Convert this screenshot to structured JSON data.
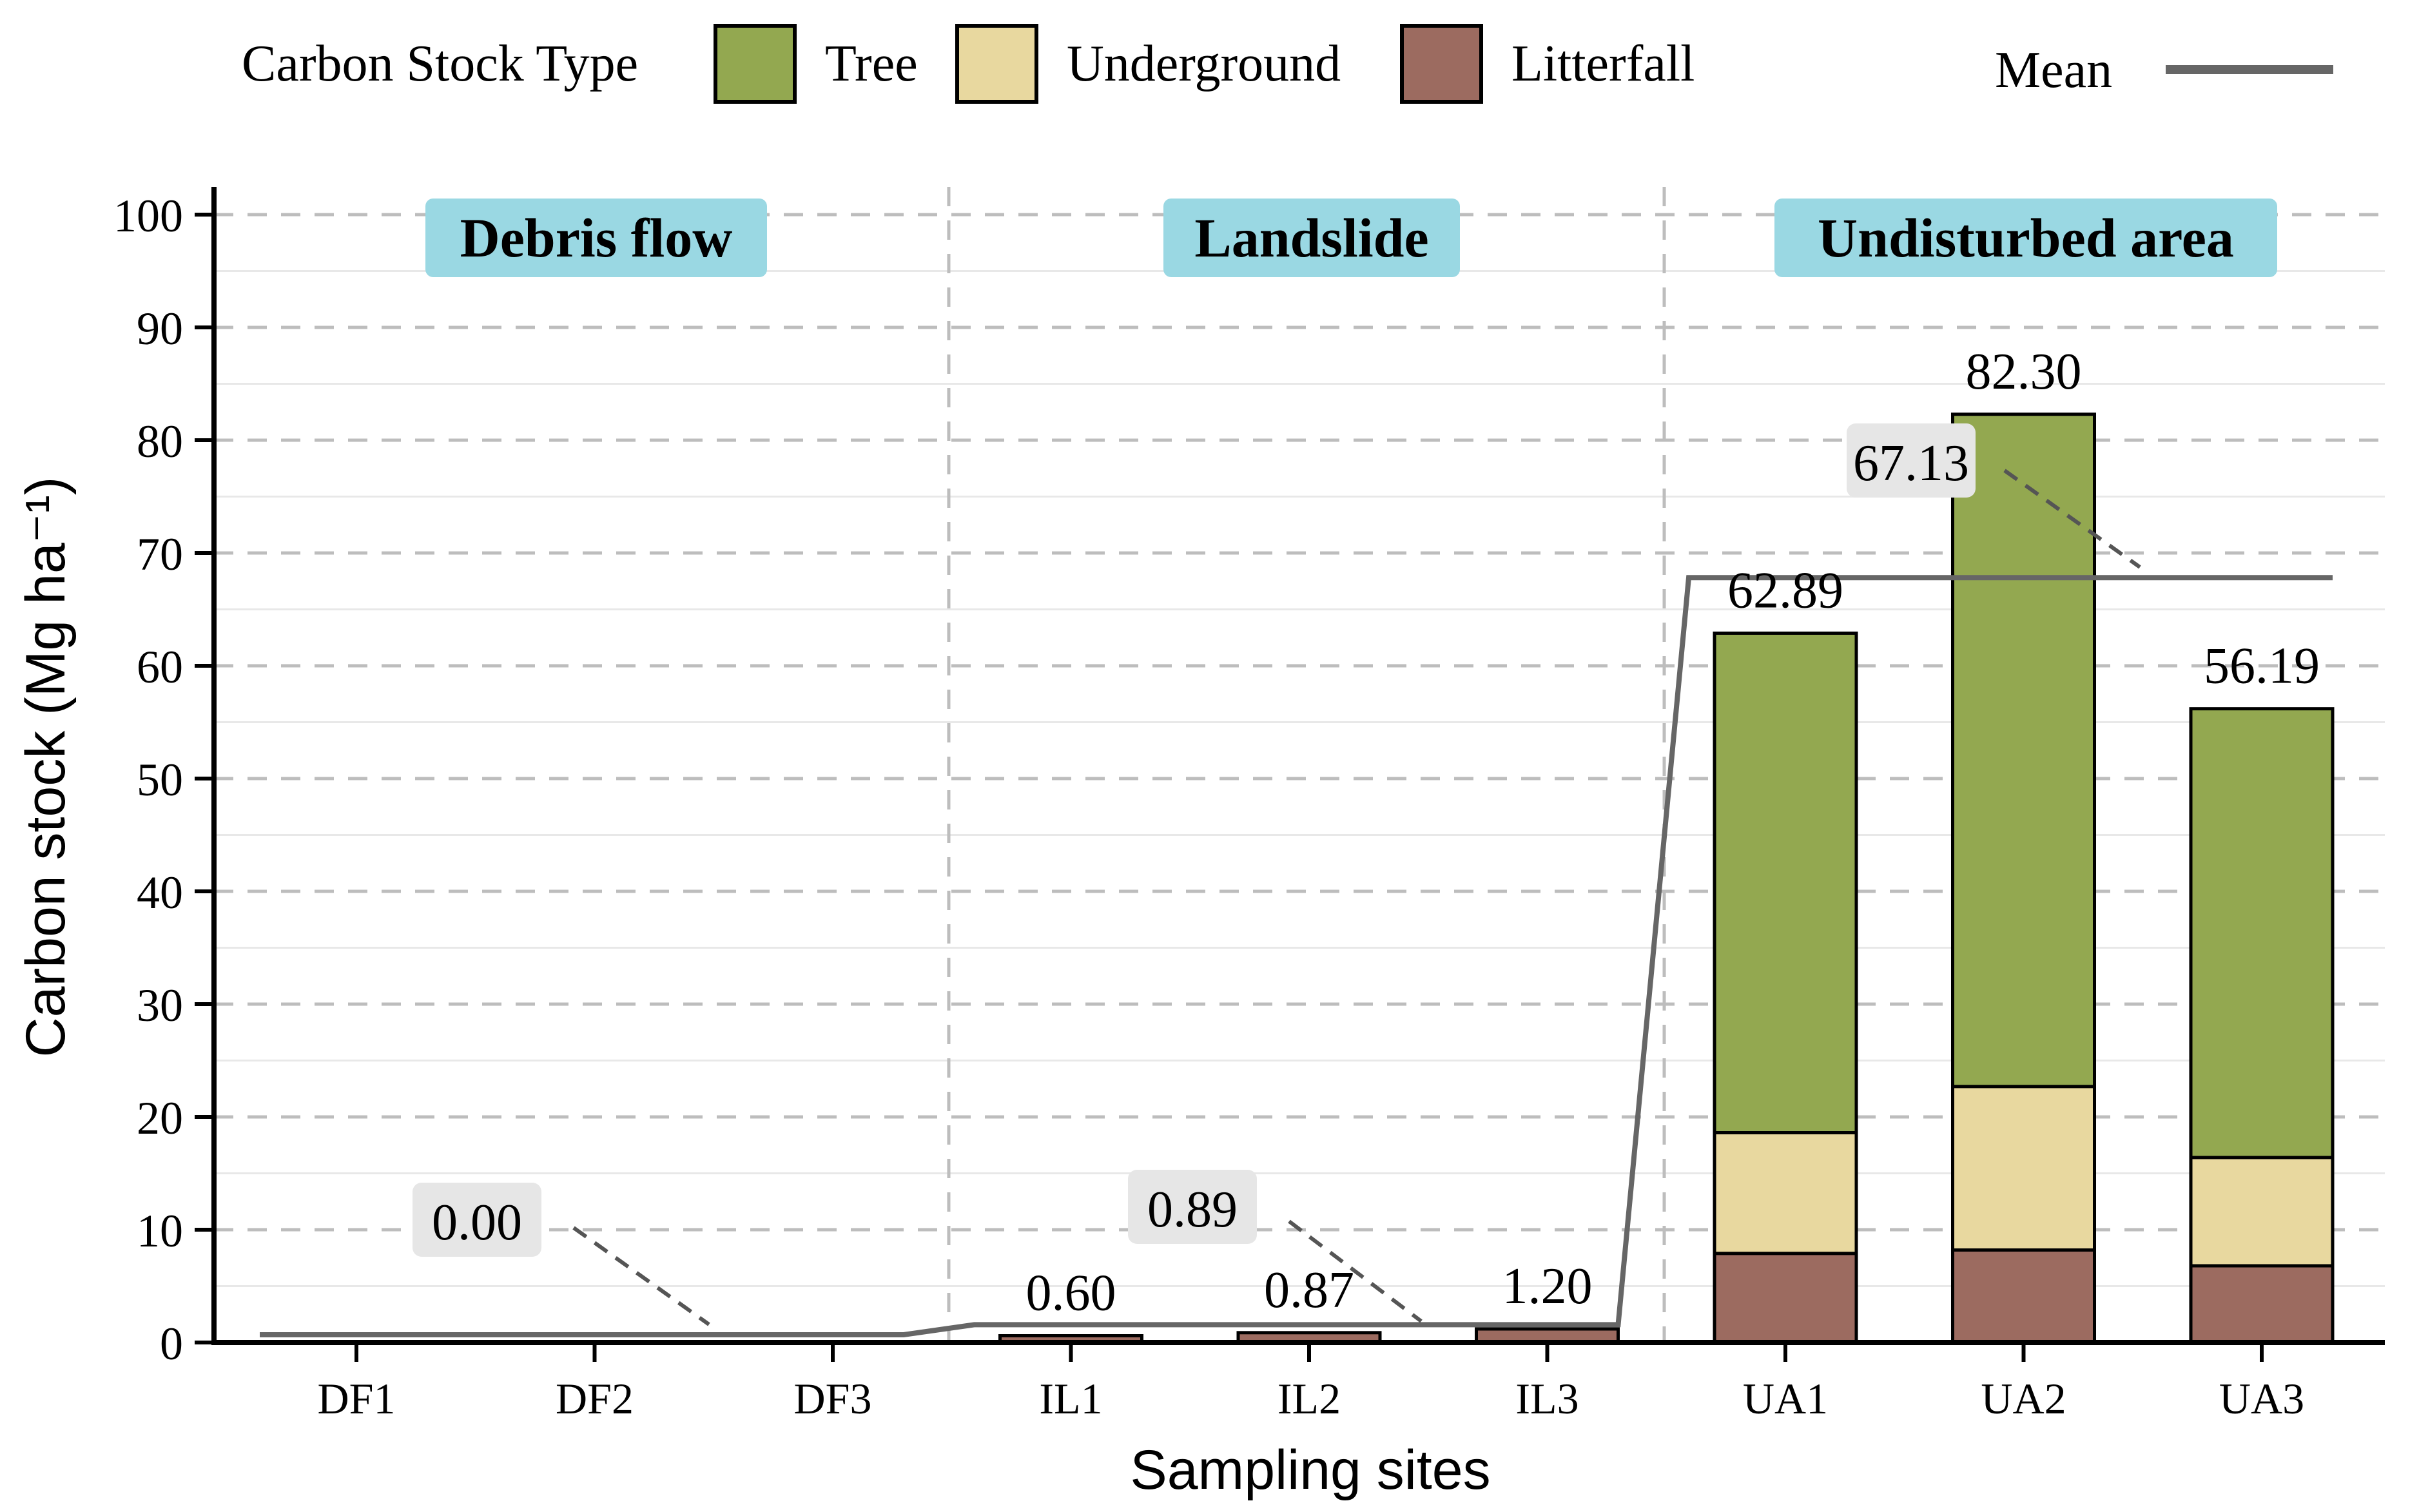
{
  "chart_data": {
    "type": "bar",
    "stacked": true,
    "xlabel": "Sampling sites",
    "ylabel": "Carbon stock (Mg ha⁻¹)",
    "ylim": [
      0,
      100
    ],
    "yticks": [
      "0",
      "10",
      "20",
      "30",
      "40",
      "50",
      "60",
      "70",
      "80",
      "90",
      "100"
    ],
    "grid": true,
    "legend": {
      "title": "Carbon Stock Type",
      "placement": "top",
      "entries": [
        {
          "name": "Tree",
          "color": "#93A850"
        },
        {
          "name": "Underground",
          "color": "#E8D89F"
        },
        {
          "name": "Litterfall",
          "color": "#9C6B60"
        }
      ],
      "mean_label": "Mean",
      "mean_color": "#666666"
    },
    "categories": [
      "DF1",
      "DF2",
      "DF3",
      "IL1",
      "IL2",
      "IL3",
      "UA1",
      "UA2",
      "UA3"
    ],
    "series": [
      {
        "name": "Litterfall",
        "values": [
          0,
          0,
          0,
          0.6,
          0.87,
          1.2,
          7.9,
          8.2,
          6.8
        ]
      },
      {
        "name": "Underground",
        "values": [
          0,
          0,
          0,
          0,
          0,
          0,
          10.7,
          14.5,
          9.6
        ]
      },
      {
        "name": "Tree",
        "values": [
          0,
          0,
          0,
          0,
          0,
          0,
          44.29,
          59.6,
          39.79
        ]
      }
    ],
    "bar_labels": [
      "",
      "",
      "",
      "0.60",
      "0.87",
      "1.20",
      "62.89",
      "82.30",
      "56.19"
    ],
    "groups": [
      {
        "name": "Debris flow",
        "sites": [
          "DF1",
          "DF2",
          "DF3"
        ],
        "mean": 0.0,
        "mean_label": "0.00"
      },
      {
        "name": "Landslide",
        "sites": [
          "IL1",
          "IL2",
          "IL3"
        ],
        "mean": 0.89,
        "mean_label": "0.89"
      },
      {
        "name": "Undisturbed area",
        "sites": [
          "UA1",
          "UA2",
          "UA3"
        ],
        "mean": 67.13,
        "mean_label": "67.13"
      }
    ],
    "colors": {
      "group_label_bg": "#9AD8E3",
      "mean_label_bg": "#E6E6E6"
    }
  }
}
